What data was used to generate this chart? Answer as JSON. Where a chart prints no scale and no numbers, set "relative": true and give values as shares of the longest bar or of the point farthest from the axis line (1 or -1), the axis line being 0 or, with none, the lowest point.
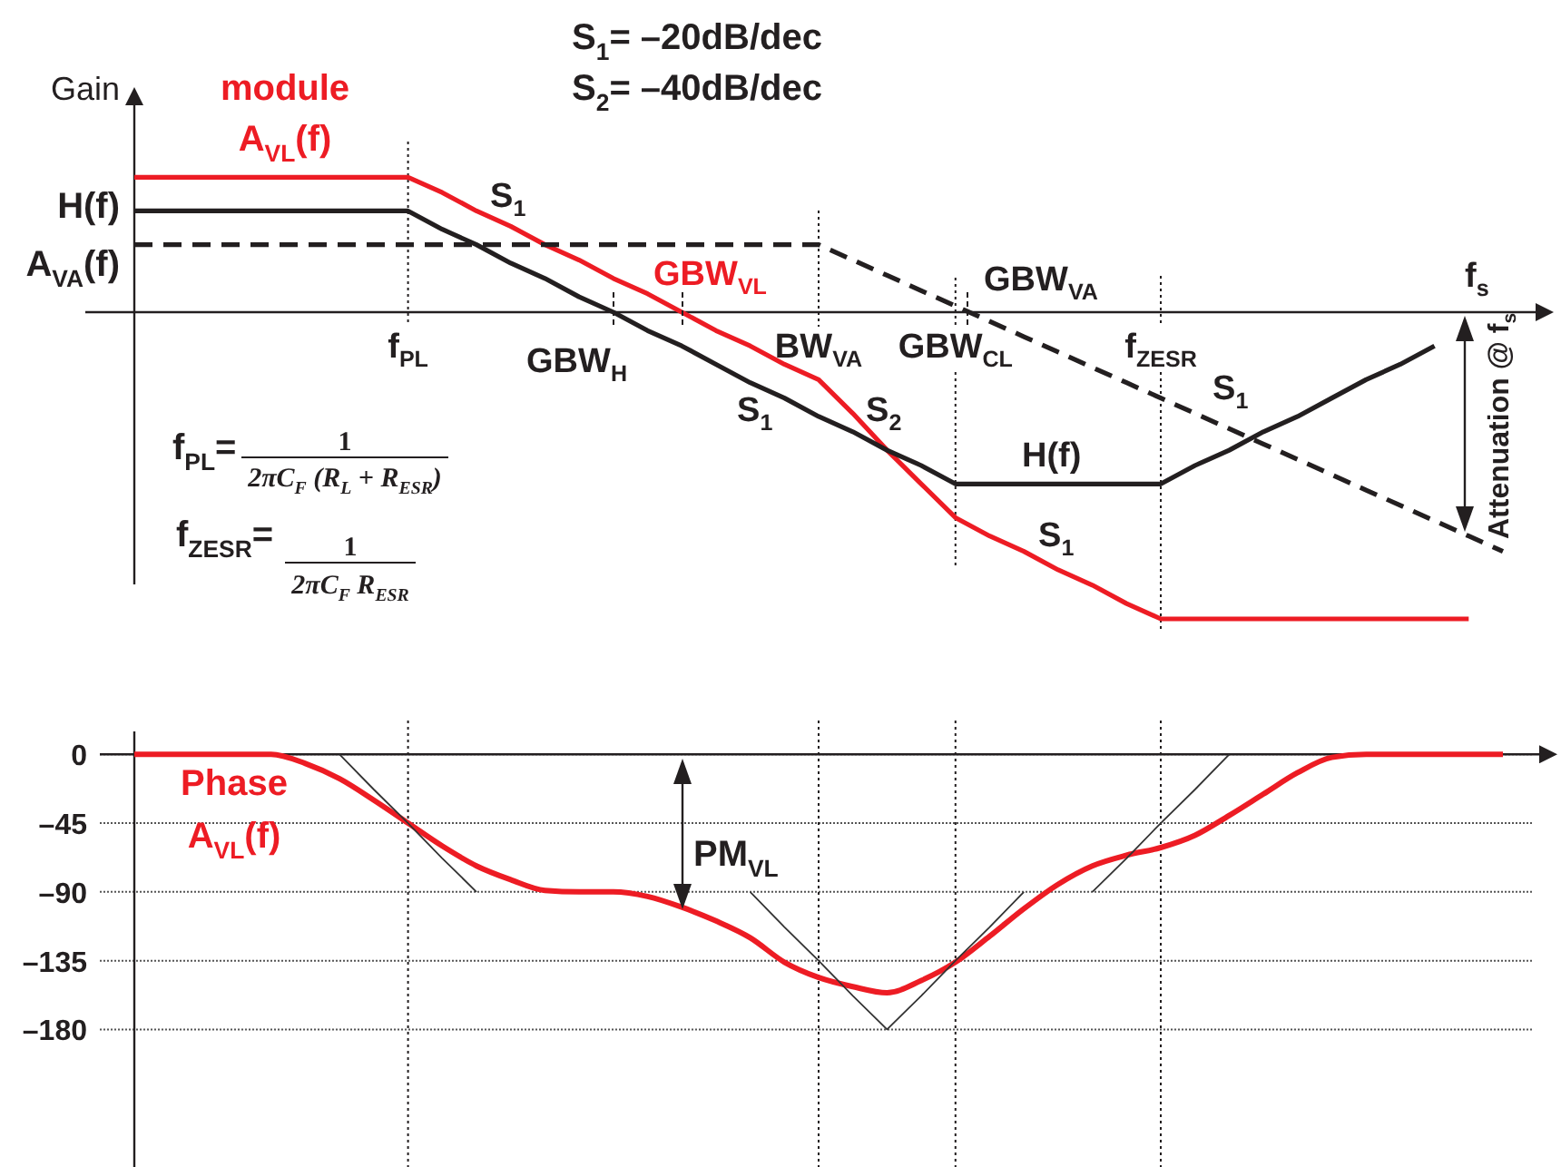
{
  "chart_data": [
    {
      "type": "line",
      "relative": true,
      "ylabel": "Gain",
      "xlabel": "f$_{s}$",
      "categories": [
        null,
        null,
        null,
        null,
        null,
        null,
        null,
        null,
        "f$_{PL}$",
        null,
        null,
        null,
        null,
        null,
        null,
        null,
        null,
        null,
        null,
        null,
        "BW$_{VA}$",
        null,
        null,
        null,
        "GBW$_{CL}$",
        null,
        null,
        null,
        null,
        null,
        "f$_{ZESR}$",
        null,
        null,
        null,
        null,
        null,
        null,
        null,
        null,
        null,
        null
      ],
      "series": [
        {
          "name": "module A$_{VL}$(f)",
          "color": "#ed1c24",
          "values": [
            0.44,
            0.44,
            0.44,
            0.44,
            0.44,
            0.44,
            0.44,
            0.44,
            0.44,
            0.39,
            0.33,
            0.28,
            0.22,
            0.17,
            0.11,
            0.06,
            0,
            -0.06,
            -0.11,
            -0.17,
            -0.22,
            -0.33,
            -0.45,
            -0.56,
            -0.67,
            -0.73,
            -0.78,
            -0.84,
            -0.89,
            -0.95,
            -1,
            -1,
            -1,
            -1,
            -1,
            -1,
            -1,
            -1,
            -1,
            -1,
            null
          ]
        },
        {
          "name": "H(f)",
          "color": "#231f20",
          "values": [
            0.33,
            0.33,
            0.33,
            0.33,
            0.33,
            0.33,
            0.33,
            0.33,
            0.33,
            0.27,
            0.22,
            0.16,
            0.11,
            0.05,
            0,
            -0.06,
            -0.11,
            -0.17,
            -0.23,
            -0.28,
            -0.34,
            -0.39,
            -0.45,
            -0.5,
            -0.56,
            -0.56,
            -0.56,
            -0.56,
            -0.56,
            -0.56,
            -0.56,
            -0.5,
            -0.45,
            -0.39,
            -0.34,
            -0.28,
            -0.22,
            -0.17,
            -0.11,
            null,
            null
          ]
        },
        {
          "name": "A$_{VA}$(f)",
          "color": "#231f20",
          "line_style": "dashed",
          "values": [
            0.22,
            0.22,
            0.22,
            0.22,
            0.22,
            0.22,
            0.22,
            0.22,
            0.22,
            0.22,
            0.22,
            0.22,
            0.22,
            0.22,
            0.22,
            0.22,
            0.22,
            0.22,
            0.22,
            0.22,
            0.22,
            0.17,
            0.12,
            0.07,
            0.02,
            -0.03,
            -0.08,
            -0.13,
            -0.18,
            -0.23,
            -0.28,
            -0.33,
            -0.38,
            -0.43,
            -0.48,
            -0.53,
            -0.58,
            -0.63,
            -0.68,
            -0.73,
            -0.78
          ]
        }
      ],
      "ref_lines": [
        {
          "axis": "x",
          "value": "f$_{PL}$",
          "line_style": "dotted"
        },
        {
          "axis": "x",
          "value": "BW$_{VA}$",
          "line_style": "dotted"
        },
        {
          "axis": "x",
          "value": "GBW$_{CL}$",
          "line_style": "dotted"
        },
        {
          "axis": "x",
          "value": "f$_{ZESR}$",
          "line_style": "dotted"
        }
      ],
      "annotations": [
        "S$_{1}$= –20dB/dec",
        "S$_{2}$= –40dB/dec",
        "S$_{1}$",
        "GBW$_{VL}$",
        "GBW$_{H}$",
        "S$_{1}$",
        "S$_{2}$",
        "GBW$_{VA}$",
        "H(f)",
        "S$_{1}$",
        "S$_{1}$",
        "Attenuation @ f$_{s}$",
        "f$_{PL}$=",
        "1",
        "2πC$_{F}$ (R$_{L}$ + R$_{ESR}$)",
        "f$_{ZESR}$=",
        "1",
        "2πC$_{F}$ R$_{ESR}$"
      ]
    },
    {
      "type": "line",
      "ylim": [
        -270,
        15
      ],
      "yticks": [
        0,
        {
          "value": -45,
          "label": "–45"
        },
        {
          "value": -90,
          "label": "–90"
        },
        {
          "value": -135,
          "label": "–135"
        },
        {
          "value": -180,
          "label": "–180"
        }
      ],
      "grid": "y",
      "tick_labels": "y",
      "categories": [
        null,
        null,
        null,
        null,
        null,
        null,
        null,
        null,
        "f$_{PL}$",
        null,
        null,
        null,
        null,
        null,
        null,
        null,
        null,
        null,
        null,
        null,
        "BW$_{VA}$",
        null,
        null,
        null,
        "GBW$_{CL}$",
        null,
        null,
        null,
        null,
        null,
        "f$_{ZESR}$",
        null,
        null,
        null,
        null,
        null,
        null,
        null,
        null,
        null,
        null
      ],
      "series": [
        {
          "name": "Phase A$_{VL}$(f)",
          "color": "#ed1c24",
          "values": [
            0,
            0,
            0,
            0,
            0,
            -6,
            -16,
            -30,
            -45,
            -60,
            -73,
            -82,
            -89,
            -90,
            -90,
            -93,
            -100,
            -109,
            -120,
            -136,
            -146,
            -152,
            -156,
            -148,
            -136,
            -119,
            -101,
            -85,
            -73,
            -66,
            -61,
            -53,
            -40,
            -26,
            -12,
            -2,
            0,
            0,
            0,
            0,
            0
          ]
        },
        {
          "color": "#333333",
          "values": [
            null,
            null,
            null,
            null,
            null,
            null,
            0,
            -23,
            -45,
            -68,
            -90,
            null,
            null,
            null,
            null,
            null,
            null,
            null,
            -90,
            -113,
            -135,
            -158,
            -180,
            -158,
            -135,
            -113,
            -90,
            null,
            -90,
            -68,
            -45,
            -23,
            0,
            null,
            null,
            null,
            null,
            null,
            null,
            null,
            null
          ]
        }
      ],
      "ref_lines": [
        {
          "axis": "x",
          "value": "f$_{PL}$",
          "line_style": "dotted"
        },
        {
          "axis": "x",
          "value": "BW$_{VA}$",
          "line_style": "dotted"
        },
        {
          "axis": "x",
          "value": "GBW$_{CL}$",
          "line_style": "dotted"
        },
        {
          "axis": "x",
          "value": "f$_{ZESR}$",
          "line_style": "dotted"
        }
      ],
      "annotations": [
        "PM$_{VL}$"
      ]
    }
  ]
}
